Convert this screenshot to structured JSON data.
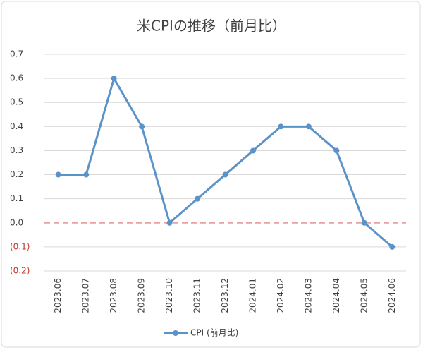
{
  "chart_data": {
    "type": "line",
    "title": "米CPIの推移（前月比）",
    "categories": [
      "2023.06",
      "2023.07",
      "2023.08",
      "2023.09",
      "2023.10",
      "2023.11",
      "2023.12",
      "2024.01",
      "2024.02",
      "2024.03",
      "2024.04",
      "2024.05",
      "2024.06"
    ],
    "series": [
      {
        "name": "CPI (前月比)",
        "color": "#5b93c9",
        "values": [
          0.2,
          0.2,
          0.6,
          0.4,
          0.0,
          0.1,
          0.2,
          0.3,
          0.4,
          0.4,
          0.3,
          0.0,
          -0.1
        ]
      }
    ],
    "ylim": [
      -0.2,
      0.7
    ],
    "yticks": [
      {
        "value": -0.2,
        "label": "(0.2)"
      },
      {
        "value": -0.1,
        "label": "(0.1)"
      },
      {
        "value": 0,
        "label": "0.0"
      },
      0.1,
      0.2,
      0.3,
      0.4,
      0.5,
      0.6,
      0.7
    ],
    "grid": true,
    "negative_tick_color": "#c0392b",
    "zero_line_color": "#e8a0a0",
    "legend": "bottom"
  }
}
